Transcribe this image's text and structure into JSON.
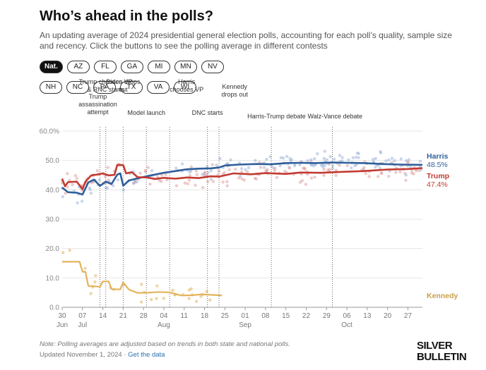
{
  "header": {
    "title": "Who’s ahead in the polls?",
    "subtitle": "An updating average of 2024 presidential general election polls, accounting for each poll’s quality, sample size and recency. Click the buttons to see the polling average in different contests"
  },
  "contests": {
    "row1": [
      "Nat.",
      "AZ",
      "FL",
      "GA",
      "MI",
      "MN",
      "NV"
    ],
    "row2": [
      "NH",
      "NC",
      "PA",
      "TX",
      "VA",
      "WI"
    ],
    "selected": "Nat."
  },
  "footer": {
    "note": "Note: Polling averages are adjusted based on trends in both state and national polls.",
    "updated": "Updated November 1, 2024 ·",
    "get_data": "Get the data",
    "logo_line1": "SILVER",
    "logo_line2": "BULLETIN"
  },
  "colors": {
    "harris": "#2f5f9b",
    "trump": "#c23b32",
    "kennedy": "#e3b35a",
    "ribbon_blue": "#9fb4d8",
    "ribbon_red": "#e0a0a0"
  },
  "chart_data": {
    "type": "line",
    "x_start": "2024-06-30",
    "x_end": "2024-11-01",
    "ylim": [
      0,
      60
    ],
    "yticks": [
      "0.0",
      "10.0",
      "20.0",
      "30.0",
      "40.0",
      "50.0",
      "60.0%"
    ],
    "ytick_values": [
      0,
      10,
      20,
      30,
      40,
      50,
      60
    ],
    "xticks": [
      {
        "date": "2024-06-30",
        "label": "30",
        "month": "Jun"
      },
      {
        "date": "2024-07-07",
        "label": "07",
        "month": "Jul"
      },
      {
        "date": "2024-07-14",
        "label": "14"
      },
      {
        "date": "2024-07-21",
        "label": "21"
      },
      {
        "date": "2024-07-28",
        "label": "28"
      },
      {
        "date": "2024-08-04",
        "label": "04",
        "month": "Aug"
      },
      {
        "date": "2024-08-11",
        "label": "11"
      },
      {
        "date": "2024-08-18",
        "label": "18"
      },
      {
        "date": "2024-08-25",
        "label": "25"
      },
      {
        "date": "2024-09-01",
        "label": "01",
        "month": "Sep"
      },
      {
        "date": "2024-09-08",
        "label": "08"
      },
      {
        "date": "2024-09-15",
        "label": "15"
      },
      {
        "date": "2024-09-22",
        "label": "22"
      },
      {
        "date": "2024-09-29",
        "label": "29"
      },
      {
        "date": "2024-10-06",
        "label": "06",
        "month": "Oct"
      },
      {
        "date": "2024-10-13",
        "label": "13"
      },
      {
        "date": "2024-10-20",
        "label": "20"
      },
      {
        "date": "2024-10-27",
        "label": "27"
      }
    ],
    "events": [
      {
        "date": "2024-07-13",
        "label": "Trump assassination attempt"
      },
      {
        "date": "2024-07-15",
        "label": "Trump chooses VP & RNC starts"
      },
      {
        "date": "2024-07-21",
        "label": "Biden drops out"
      },
      {
        "date": "2024-07-29",
        "label": "Model launch"
      },
      {
        "date": "2024-08-06",
        "label": "Harris chooses VP"
      },
      {
        "date": "2024-08-19",
        "label": "DNC starts"
      },
      {
        "date": "2024-08-23",
        "label": "Kennedy drops out"
      },
      {
        "date": "2024-09-10",
        "label": "Harris-Trump debate"
      },
      {
        "date": "2024-10-01",
        "label": "Walz-Vance debate"
      }
    ],
    "series": [
      {
        "name": "Harris",
        "end_value": "48.5%",
        "points": [
          [
            "2024-06-30",
            40.8
          ],
          [
            "2024-07-02",
            39.2
          ],
          [
            "2024-07-05",
            39.0
          ],
          [
            "2024-07-07",
            38.4
          ],
          [
            "2024-07-09",
            42.5
          ],
          [
            "2024-07-11",
            43.5
          ],
          [
            "2024-07-13",
            41.3
          ],
          [
            "2024-07-15",
            42.8
          ],
          [
            "2024-07-17",
            42.0
          ],
          [
            "2024-07-19",
            45.2
          ],
          [
            "2024-07-20",
            45.6
          ],
          [
            "2024-07-21",
            41.4
          ],
          [
            "2024-07-23",
            43.2
          ],
          [
            "2024-07-26",
            43.9
          ],
          [
            "2024-07-29",
            44.6
          ],
          [
            "2024-08-01",
            45.2
          ],
          [
            "2024-08-04",
            45.8
          ],
          [
            "2024-08-08",
            46.4
          ],
          [
            "2024-08-12",
            47.0
          ],
          [
            "2024-08-16",
            47.2
          ],
          [
            "2024-08-20",
            47.3
          ],
          [
            "2024-08-23",
            47.6
          ],
          [
            "2024-08-25",
            48.3
          ],
          [
            "2024-08-30",
            48.6
          ],
          [
            "2024-09-05",
            48.8
          ],
          [
            "2024-09-10",
            48.7
          ],
          [
            "2024-09-15",
            49.1
          ],
          [
            "2024-09-20",
            49.2
          ],
          [
            "2024-09-25",
            49.1
          ],
          [
            "2024-10-01",
            49.3
          ],
          [
            "2024-10-06",
            49.2
          ],
          [
            "2024-10-12",
            49.1
          ],
          [
            "2024-10-18",
            48.8
          ],
          [
            "2024-10-24",
            48.6
          ],
          [
            "2024-11-01",
            48.5
          ]
        ]
      },
      {
        "name": "Trump",
        "end_value": "47.4%",
        "points": [
          [
            "2024-06-30",
            43.8
          ],
          [
            "2024-07-01",
            41.2
          ],
          [
            "2024-07-02",
            42.6
          ],
          [
            "2024-07-05",
            42.8
          ],
          [
            "2024-07-07",
            40.2
          ],
          [
            "2024-07-08",
            42.8
          ],
          [
            "2024-07-10",
            44.9
          ],
          [
            "2024-07-12",
            45.2
          ],
          [
            "2024-07-14",
            45.6
          ],
          [
            "2024-07-16",
            44.9
          ],
          [
            "2024-07-18",
            45.1
          ],
          [
            "2024-07-19",
            48.5
          ],
          [
            "2024-07-21",
            48.4
          ],
          [
            "2024-07-22",
            45.6
          ],
          [
            "2024-07-24",
            46.0
          ],
          [
            "2024-07-26",
            44.3
          ],
          [
            "2024-07-29",
            44.2
          ],
          [
            "2024-08-01",
            43.7
          ],
          [
            "2024-08-04",
            44.1
          ],
          [
            "2024-08-08",
            43.8
          ],
          [
            "2024-08-12",
            44.2
          ],
          [
            "2024-08-16",
            44.0
          ],
          [
            "2024-08-20",
            44.6
          ],
          [
            "2024-08-23",
            44.5
          ],
          [
            "2024-08-28",
            45.6
          ],
          [
            "2024-09-03",
            45.3
          ],
          [
            "2024-09-08",
            45.7
          ],
          [
            "2024-09-15",
            45.4
          ],
          [
            "2024-09-20",
            45.9
          ],
          [
            "2024-09-27",
            45.8
          ],
          [
            "2024-10-04",
            46.1
          ],
          [
            "2024-10-12",
            46.4
          ],
          [
            "2024-10-20",
            46.9
          ],
          [
            "2024-10-27",
            47.1
          ],
          [
            "2024-11-01",
            47.4
          ]
        ]
      },
      {
        "name": "Kennedy",
        "end_value": "",
        "points": [
          [
            "2024-06-30",
            15.5
          ],
          [
            "2024-07-06",
            15.5
          ],
          [
            "2024-07-07",
            12.1
          ],
          [
            "2024-07-08",
            12.1
          ],
          [
            "2024-07-09",
            7.3
          ],
          [
            "2024-07-13",
            7.0
          ],
          [
            "2024-07-14",
            8.8
          ],
          [
            "2024-07-16",
            8.8
          ],
          [
            "2024-07-17",
            6.2
          ],
          [
            "2024-07-20",
            6.1
          ],
          [
            "2024-07-21",
            8.5
          ],
          [
            "2024-07-23",
            6.0
          ],
          [
            "2024-07-26",
            4.9
          ],
          [
            "2024-07-30",
            5.0
          ],
          [
            "2024-08-02",
            5.2
          ],
          [
            "2024-08-06",
            5.1
          ],
          [
            "2024-08-10",
            4.0
          ],
          [
            "2024-08-14",
            4.1
          ],
          [
            "2024-08-17",
            4.4
          ],
          [
            "2024-08-21",
            4.2
          ],
          [
            "2024-08-24",
            4.0
          ]
        ]
      }
    ]
  }
}
